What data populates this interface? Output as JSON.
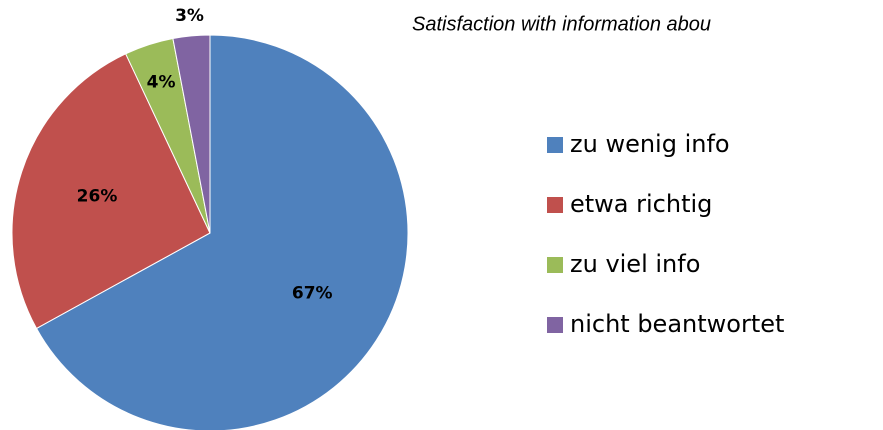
{
  "chart_data": {
    "type": "pie",
    "title": "Satisfaction with information abou",
    "categories": [
      "zu wenig info",
      "etwa richtig",
      "zu viel info",
      "nicht beantwortet"
    ],
    "values": [
      67,
      26,
      4,
      3
    ],
    "value_labels": [
      "67%",
      "26%",
      "4%",
      "3%"
    ],
    "colors": [
      "#4f81bd",
      "#c0504d",
      "#9bbb59",
      "#8064a2"
    ],
    "legend": "right"
  }
}
